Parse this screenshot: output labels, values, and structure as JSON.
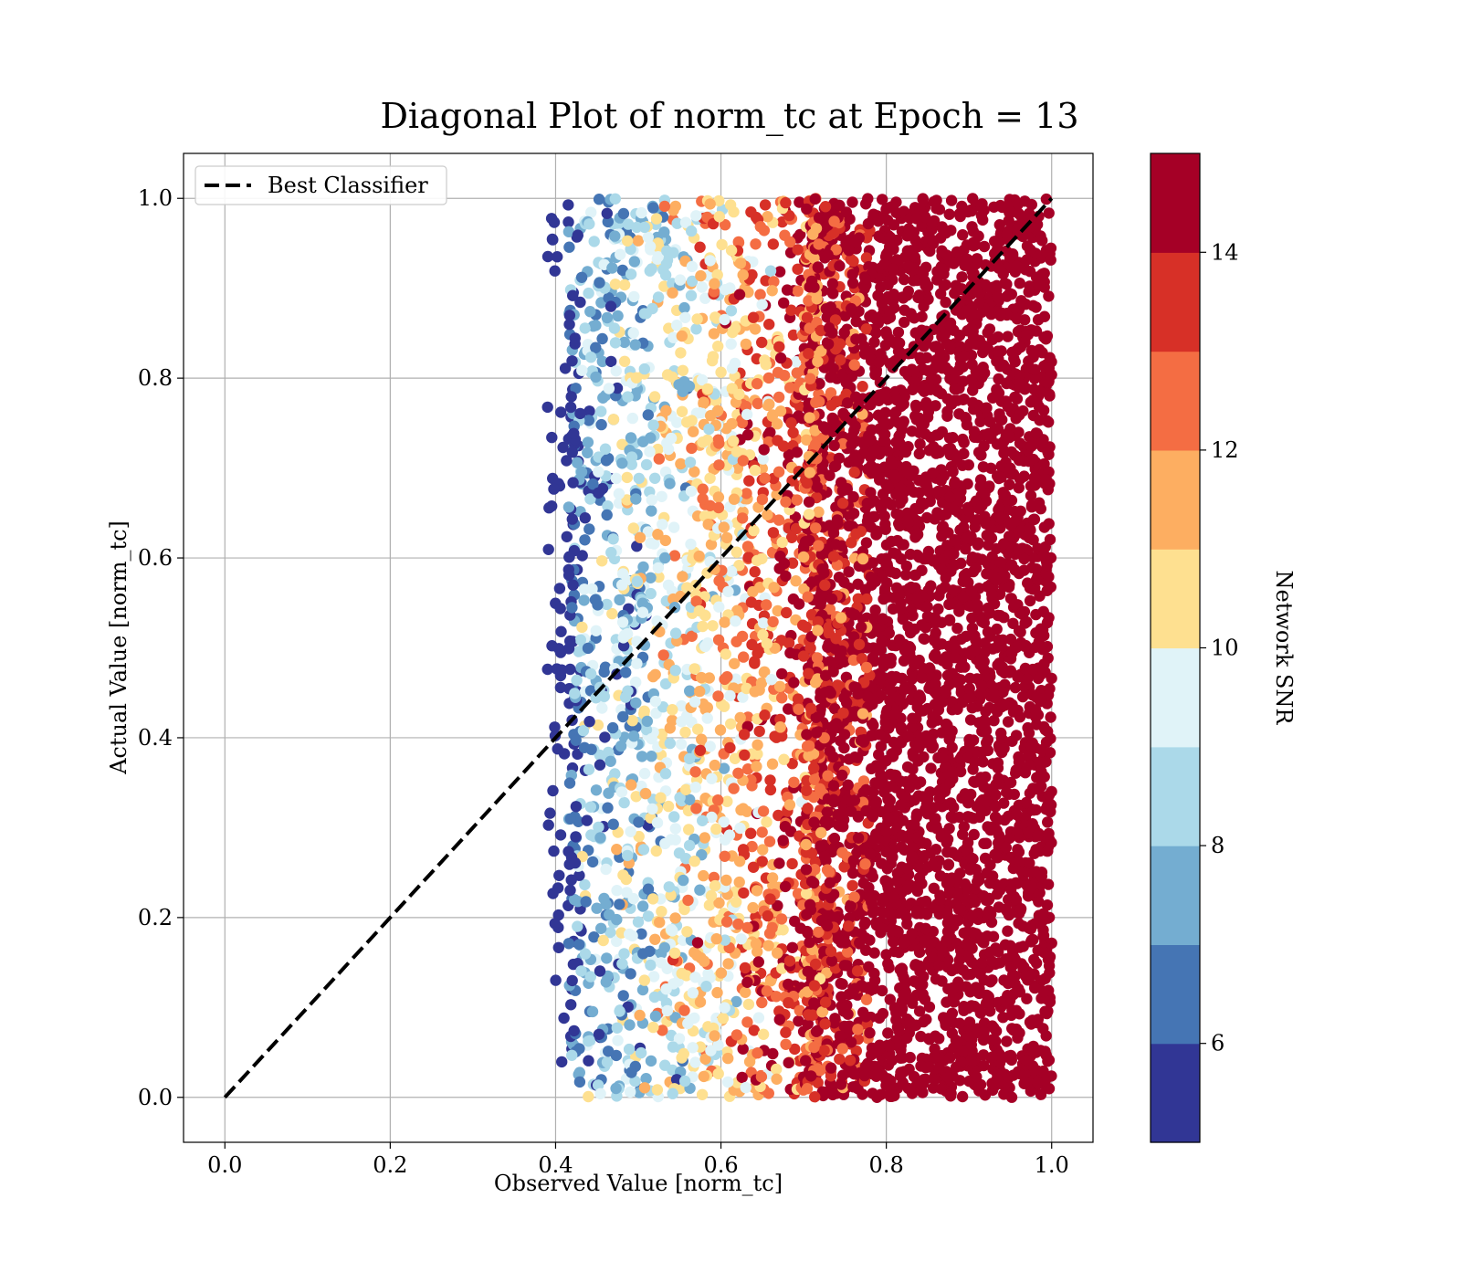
{
  "chart_data": {
    "type": "scatter",
    "title": "Diagonal Plot of norm_tc at Epoch = 13",
    "xlabel": "Observed Value [norm_tc]",
    "ylabel": "Actual Value [norm_tc]",
    "xlim": [
      -0.05,
      1.05
    ],
    "ylim": [
      -0.05,
      1.05
    ],
    "xticks": [
      0.0,
      0.2,
      0.4,
      0.6,
      0.8,
      1.0
    ],
    "yticks": [
      0.0,
      0.2,
      0.4,
      0.6,
      0.8,
      1.0
    ],
    "xtick_labels": [
      "0.0",
      "0.2",
      "0.4",
      "0.6",
      "0.8",
      "1.0"
    ],
    "ytick_labels": [
      "0.0",
      "0.2",
      "0.4",
      "0.6",
      "0.8",
      "1.0"
    ],
    "grid": true,
    "legend": {
      "position": "top-left",
      "entries": [
        {
          "label": "Best Classifier",
          "style": "dashed",
          "color": "#000000"
        }
      ]
    },
    "reference_line": {
      "name": "Best Classifier",
      "x": [
        0.0,
        1.0
      ],
      "y": [
        0.0,
        1.0
      ],
      "style": "dashed",
      "color": "#000000"
    },
    "scatter": {
      "x_range": [
        0.39,
        1.0
      ],
      "y_range": [
        0.0,
        1.0
      ],
      "color_by": "Network SNR",
      "snr_bands": [
        {
          "x_from": 0.39,
          "x_to": 0.43,
          "snr": 6.3
        },
        {
          "x_from": 0.43,
          "x_to": 0.47,
          "snr": 7.8
        },
        {
          "x_from": 0.47,
          "x_to": 0.52,
          "snr": 8.6
        },
        {
          "x_from": 0.52,
          "x_to": 0.57,
          "snr": 9.7
        },
        {
          "x_from": 0.57,
          "x_to": 0.62,
          "snr": 10.8
        },
        {
          "x_from": 0.62,
          "x_to": 0.67,
          "snr": 12.3
        },
        {
          "x_from": 0.67,
          "x_to": 0.72,
          "snr": 13.4
        },
        {
          "x_from": 0.72,
          "x_to": 1.0,
          "snr": 14.6
        }
      ]
    },
    "colorbar": {
      "label": "Network SNR",
      "min": 5,
      "max": 15,
      "ticks": [
        6,
        8,
        10,
        12,
        14
      ],
      "tick_labels": [
        "6",
        "8",
        "10",
        "12",
        "14"
      ],
      "colors": [
        "#313695",
        "#4575b4",
        "#74add1",
        "#abd9e9",
        "#e0f3f8",
        "#fee090",
        "#fdae61",
        "#f46d43",
        "#d73027",
        "#a50026"
      ]
    }
  }
}
